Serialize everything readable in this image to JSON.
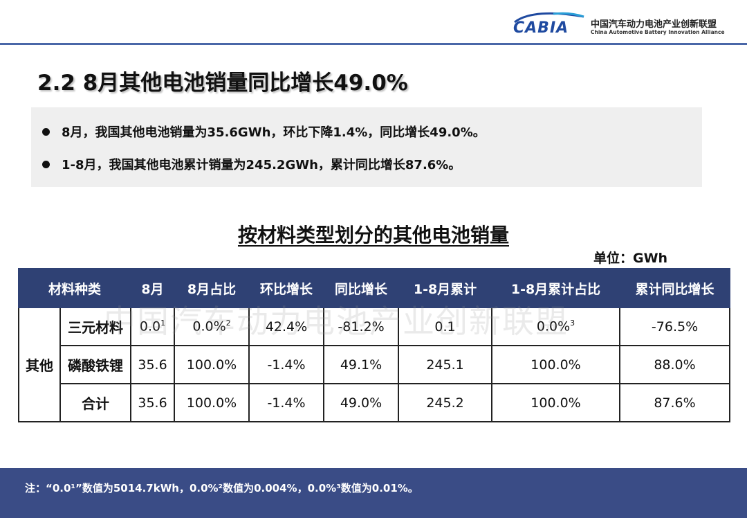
{
  "header": {
    "logo_word": "CABIA",
    "org_name_cn": "中国汽车动力电池产业创新联盟",
    "org_name_en": "China Automotive Battery Innovation Alliance",
    "accent_color": "#3a4c86"
  },
  "title": "2.2 8月其他电池销量同比增长49.0%",
  "bullets": [
    "8月，我国其他电池销量为35.6GWh，环比下降1.4%，同比增长49.0%。",
    "1-8月，我国其他电池累计销量为245.2GWh，累计同比增长87.6%。"
  ],
  "table": {
    "title": "按材料类型划分的其他电池销量",
    "unit": "单位：GWh",
    "headers": [
      "材料种类",
      "8月",
      "8月占比",
      "环比增长",
      "同比增长",
      "1-8月累计",
      "1-8月累计占比",
      "累计同比增长"
    ],
    "group": "其他",
    "rows": [
      {
        "type": "三元材料",
        "aug": "0.0",
        "aug_sup": "1",
        "share": "0.0%",
        "share_sup": "2",
        "mom": "42.4%",
        "yoy": "-81.2%",
        "cum": "0.1",
        "cum_share": "0.0%",
        "cum_share_sup": "3",
        "cum_yoy": "-76.5%"
      },
      {
        "type": "磷酸铁锂",
        "aug": "35.6",
        "share": "100.0%",
        "mom": "-1.4%",
        "yoy": "49.1%",
        "cum": "245.1",
        "cum_share": "100.0%",
        "cum_yoy": "88.0%"
      },
      {
        "type": "合计",
        "aug": "35.6",
        "share": "100.0%",
        "mom": "-1.4%",
        "yoy": "49.0%",
        "cum": "245.2",
        "cum_share": "100.0%",
        "cum_yoy": "87.6%"
      }
    ]
  },
  "watermark": "中国汽车动力电池产业创新联盟",
  "footer": {
    "note": "注：“0.0¹”数值为5014.7kWh，0.0%²数值为0.004%，0.0%³数值为0.01%。"
  }
}
